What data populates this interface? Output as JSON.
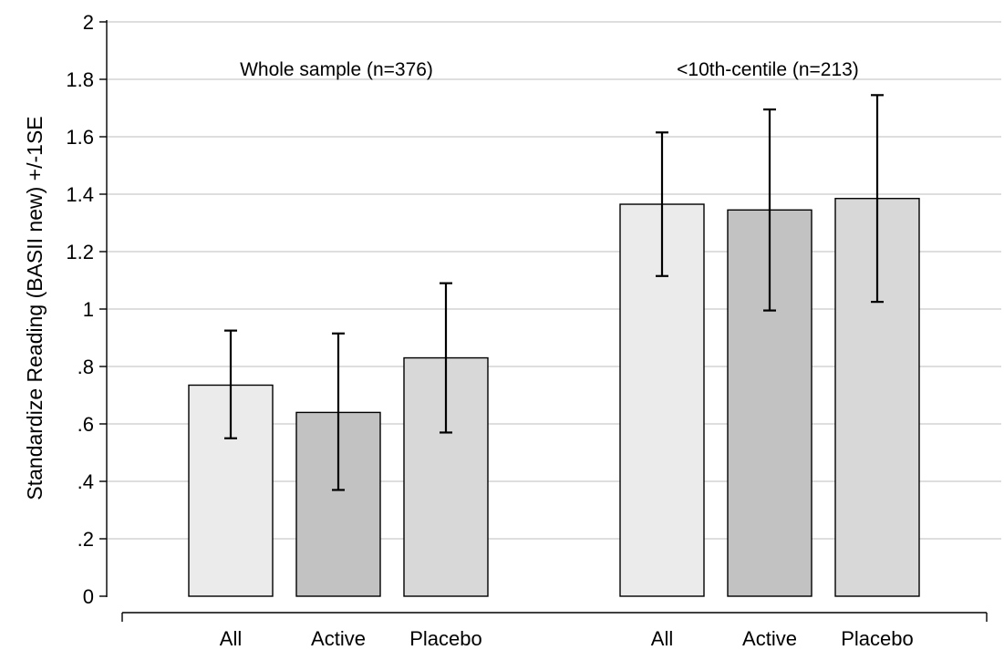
{
  "chart_data": {
    "type": "bar",
    "ylabel": "Standardize Reading (BASII new) +/-1SE",
    "ylim": [
      0,
      2
    ],
    "yticks": [
      {
        "value": 0,
        "label": "0"
      },
      {
        "value": 0.2,
        "label": ".2"
      },
      {
        "value": 0.4,
        "label": ".4"
      },
      {
        "value": 0.6,
        "label": ".6"
      },
      {
        "value": 0.8,
        "label": ".8"
      },
      {
        "value": 1.0,
        "label": "1"
      },
      {
        "value": 1.2,
        "label": "1.2"
      },
      {
        "value": 1.4,
        "label": "1.4"
      },
      {
        "value": 1.6,
        "label": "1.6"
      },
      {
        "value": 1.8,
        "label": "1.8"
      },
      {
        "value": 2.0,
        "label": "2"
      }
    ],
    "grid": true,
    "groups": [
      {
        "title": "Whole sample (n=376)",
        "bars": [
          {
            "category": "All",
            "value": 0.735,
            "err_low": 0.55,
            "err_high": 0.925,
            "color": "#ebebeb"
          },
          {
            "category": "Active",
            "value": 0.64,
            "err_low": 0.37,
            "err_high": 0.915,
            "color": "#c2c2c2"
          },
          {
            "category": "Placebo",
            "value": 0.83,
            "err_low": 0.57,
            "err_high": 1.09,
            "color": "#d8d8d8"
          }
        ]
      },
      {
        "title": "<10th-centile (n=213)",
        "bars": [
          {
            "category": "All",
            "value": 1.365,
            "err_low": 1.115,
            "err_high": 1.615,
            "color": "#ebebeb"
          },
          {
            "category": "Active",
            "value": 1.345,
            "err_low": 0.995,
            "err_high": 1.695,
            "color": "#c2c2c2"
          },
          {
            "category": "Placebo",
            "value": 1.385,
            "err_low": 1.025,
            "err_high": 1.745,
            "color": "#d8d8d8"
          }
        ]
      }
    ]
  }
}
